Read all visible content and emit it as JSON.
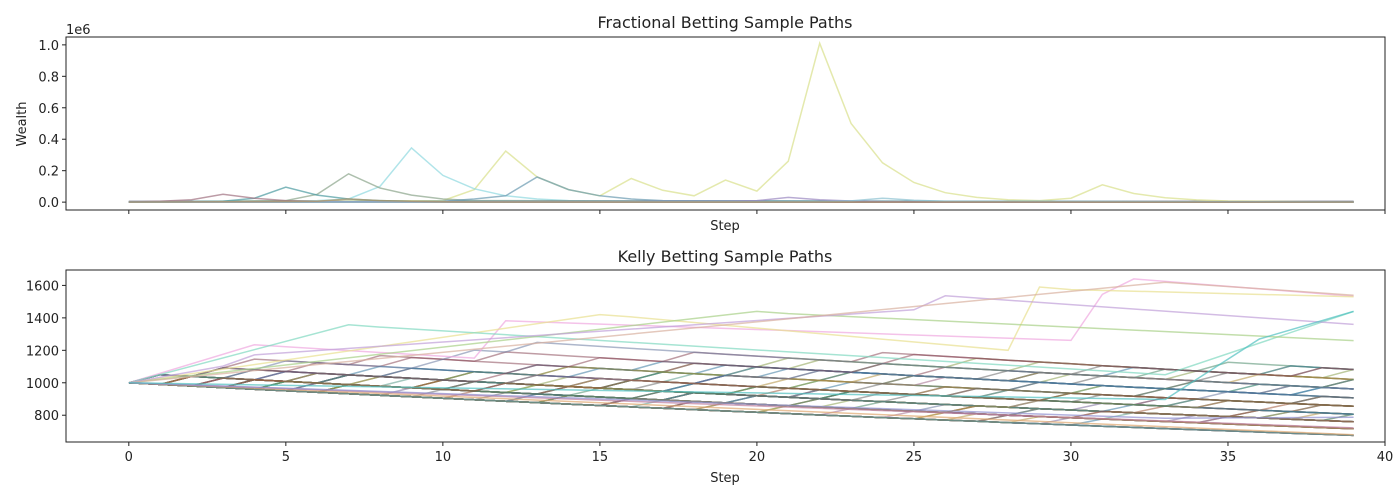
{
  "chart_data": [
    {
      "type": "line",
      "title": "Fractional Betting Sample Paths",
      "xlabel": "Step",
      "ylabel": "Wealth",
      "offset_label": "1e6",
      "xlim": [
        -2,
        40
      ],
      "ylim": [
        -0.05,
        1.05
      ],
      "xticks": [
        0,
        5,
        10,
        15,
        20,
        25,
        30,
        35,
        40
      ],
      "yticks": [
        0.0,
        0.2,
        0.4,
        0.6,
        0.8,
        1.0
      ],
      "ytick_labels": [
        "0.0",
        "0.2",
        "0.4",
        "0.6",
        "0.8",
        "1.0"
      ],
      "grid": false,
      "legend": "none",
      "series": [
        {
          "color": "#d8e08a",
          "x": [
            0,
            10,
            11,
            12,
            13,
            14,
            15,
            16,
            17,
            18,
            19,
            20,
            21,
            22,
            23,
            24,
            25,
            26,
            27,
            28,
            29,
            30,
            31,
            32,
            33,
            34,
            35,
            39
          ],
          "y": [
            0,
            0.01,
            0.08,
            0.325,
            0.16,
            0.08,
            0.04,
            0.15,
            0.075,
            0.04,
            0.14,
            0.07,
            0.26,
            1.01,
            0.5,
            0.25,
            0.125,
            0.06,
            0.03,
            0.015,
            0.01,
            0.025,
            0.11,
            0.055,
            0.028,
            0.014,
            0.007,
            0
          ]
        },
        {
          "color": "#8fd8e0",
          "x": [
            0,
            6,
            7,
            8,
            9,
            10,
            11,
            12,
            13,
            14,
            39
          ],
          "y": [
            0,
            0.01,
            0.02,
            0.1,
            0.345,
            0.17,
            0.085,
            0.04,
            0.02,
            0.01,
            0
          ]
        },
        {
          "color": "#8aa48a",
          "x": [
            0,
            5,
            6,
            7,
            8,
            9,
            10,
            11,
            39
          ],
          "y": [
            0,
            0.01,
            0.05,
            0.18,
            0.09,
            0.045,
            0.02,
            0.01,
            0
          ]
        },
        {
          "color": "#4a9aa0",
          "x": [
            0,
            3,
            4,
            5,
            6,
            7,
            8,
            9,
            39
          ],
          "y": [
            0,
            0.005,
            0.025,
            0.095,
            0.045,
            0.02,
            0.01,
            0.005,
            0
          ]
        },
        {
          "color": "#a07080",
          "x": [
            0,
            1,
            2,
            3,
            4,
            5,
            6,
            7,
            39
          ],
          "y": [
            0,
            0.005,
            0.015,
            0.05,
            0.025,
            0.01,
            0.005,
            0.002,
            0
          ]
        },
        {
          "color": "#6a9ab0",
          "x": [
            0,
            10,
            11,
            12,
            13,
            14,
            15,
            16,
            17,
            39
          ],
          "y": [
            0,
            0.005,
            0.02,
            0.04,
            0.16,
            0.08,
            0.04,
            0.02,
            0.01,
            0
          ]
        },
        {
          "color": "#9a88c0",
          "x": [
            0,
            19,
            20,
            21,
            22,
            23,
            24,
            39
          ],
          "y": [
            0,
            0.005,
            0.01,
            0.03,
            0.015,
            0.007,
            0.003,
            0
          ]
        },
        {
          "color": "#8ac0d0",
          "x": [
            0,
            22,
            23,
            24,
            25,
            26,
            39
          ],
          "y": [
            0,
            0.003,
            0.008,
            0.025,
            0.012,
            0.006,
            0
          ]
        },
        {
          "color": "#b09060",
          "x": [
            0,
            6,
            7,
            8,
            9,
            10,
            11,
            39
          ],
          "y": [
            0,
            0.005,
            0.02,
            0.01,
            0.005,
            0.002,
            0.001,
            0
          ]
        }
      ]
    },
    {
      "type": "line",
      "title": "Kelly Betting Sample Paths",
      "xlabel": "Step",
      "ylabel": "",
      "xlim": [
        -2,
        40
      ],
      "ylim": [
        635,
        1695
      ],
      "xticks": [
        0,
        5,
        10,
        15,
        20,
        25,
        30,
        35,
        40
      ],
      "yticks": [
        800,
        1000,
        1200,
        1400,
        1600
      ],
      "grid": false,
      "legend": "none",
      "lattice": {
        "start": 1000,
        "up": 1.05,
        "down": 0.99,
        "steps": 39
      },
      "palette": [
        "#4a8a6a",
        "#8a4a5a",
        "#b09040",
        "#6a7aa0",
        "#a05a3a",
        "#5a9a8a",
        "#7a6a9a",
        "#8aa050",
        "#a06a8a",
        "#3a7aa0",
        "#9a8a4a",
        "#6a6a6a"
      ],
      "highlights": [
        {
          "color": "#f0a8e0",
          "points": [
            [
              0,
              1000
            ],
            [
              4,
              1234
            ],
            [
              5,
              1222
            ],
            [
              11,
              1152
            ],
            [
              12,
              1382
            ],
            [
              30,
              1261
            ],
            [
              31,
              1545
            ],
            [
              32,
              1640
            ],
            [
              39,
              1533
            ]
          ]
        },
        {
          "color": "#e8e090",
          "points": [
            [
              0,
              1000
            ],
            [
              15,
              1420
            ],
            [
              16,
              1406
            ],
            [
              28,
              1200
            ],
            [
              29,
              1590
            ],
            [
              30,
              1574
            ],
            [
              39,
              1530
            ]
          ]
        },
        {
          "color": "#80d8c0",
          "points": [
            [
              0,
              1000
            ],
            [
              7,
              1357
            ],
            [
              8,
              1343
            ],
            [
              33,
              1050
            ],
            [
              39,
              1440
            ]
          ]
        },
        {
          "color": "#a8d088",
          "points": [
            [
              0,
              1000
            ],
            [
              20,
              1440
            ],
            [
              21,
              1426
            ],
            [
              39,
              1260
            ]
          ]
        },
        {
          "color": "#c0a0d8",
          "points": [
            [
              0,
              1000
            ],
            [
              3,
              1103
            ],
            [
              4,
              1172
            ],
            [
              25,
              1450
            ],
            [
              26,
              1536
            ],
            [
              39,
              1360
            ]
          ]
        },
        {
          "color": "#d8b0a0",
          "points": [
            [
              0,
              1000
            ],
            [
              33,
              1620
            ],
            [
              39,
              1540
            ]
          ]
        },
        {
          "color": "#e0a870",
          "points": [
            [
              0,
              1000
            ],
            [
              39,
              680
            ]
          ]
        },
        {
          "color": "#c080a0",
          "points": [
            [
              0,
              1000
            ],
            [
              39,
              722
            ]
          ]
        },
        {
          "color": "#9090d0",
          "points": [
            [
              0,
              1000
            ],
            [
              33,
              781
            ],
            [
              39,
              788
            ]
          ]
        },
        {
          "color": "#50c0c0",
          "points": [
            [
              0,
              1000
            ],
            [
              33,
              897
            ],
            [
              36,
              1270
            ],
            [
              39,
              1440
            ]
          ]
        }
      ]
    }
  ]
}
